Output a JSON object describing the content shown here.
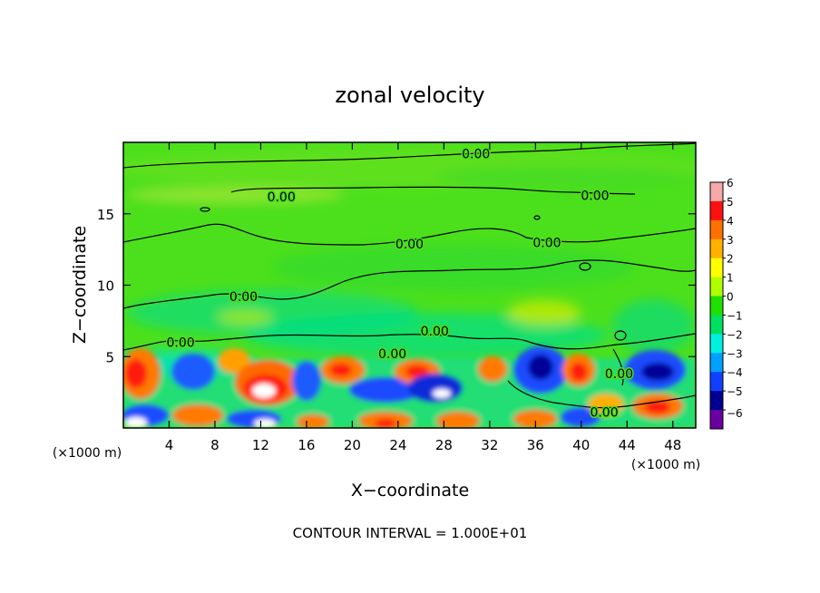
{
  "chart_data": {
    "type": "heatmap",
    "title": "zonal velocity",
    "xlabel": "X−coordinate",
    "ylabel": "Z−coordinate",
    "x_unit_left": "(×1000 m)",
    "x_unit_right": "(×1000 m)",
    "footer": "CONTOUR INTERVAL = 1.000E+01",
    "xlim": [
      0,
      50
    ],
    "ylim": [
      0,
      20
    ],
    "x_ticks": [
      4,
      8,
      12,
      16,
      20,
      24,
      28,
      32,
      36,
      40,
      44,
      48
    ],
    "y_ticks": [
      5,
      10,
      15
    ],
    "colorbar": {
      "ticks": [
        6,
        5,
        4,
        3,
        2,
        1,
        0,
        -1,
        -2,
        -3,
        -4,
        -5,
        -6
      ],
      "tick_labels": [
        "6",
        "5",
        "4",
        "3",
        "2",
        "1",
        "0",
        "−1",
        "−2",
        "−3",
        "−4",
        "−5",
        "−6"
      ],
      "colors": [
        "#f7a8a8",
        "#ff1010",
        "#ff7000",
        "#ffb000",
        "#ffff00",
        "#b0ff00",
        "#20e000",
        "#00e060",
        "#00f0e0",
        "#00a0ff",
        "#1040ff",
        "#000090",
        "#6a00a0"
      ]
    },
    "contour_labels": [
      {
        "text": "0.00",
        "x": 30.8,
        "z": 19.2
      },
      {
        "text": "0.00",
        "x": 13.8,
        "z": 16.2
      },
      {
        "text": "0.00",
        "x": 41.2,
        "z": 16.3
      },
      {
        "text": "0.00",
        "x": 25.0,
        "z": 12.9
      },
      {
        "text": "0.00",
        "x": 37.0,
        "z": 13.0
      },
      {
        "text": "0.00",
        "x": 10.5,
        "z": 9.2
      },
      {
        "text": "0.00",
        "x": 27.2,
        "z": 6.8
      },
      {
        "text": "0.00",
        "x": 5.0,
        "z": 6.0
      },
      {
        "text": "0.00",
        "x": 23.5,
        "z": 5.2
      },
      {
        "text": "0.00",
        "x": 43.3,
        "z": 3.8
      },
      {
        "text": "0.00",
        "x": 42.0,
        "z": 1.1
      }
    ]
  }
}
